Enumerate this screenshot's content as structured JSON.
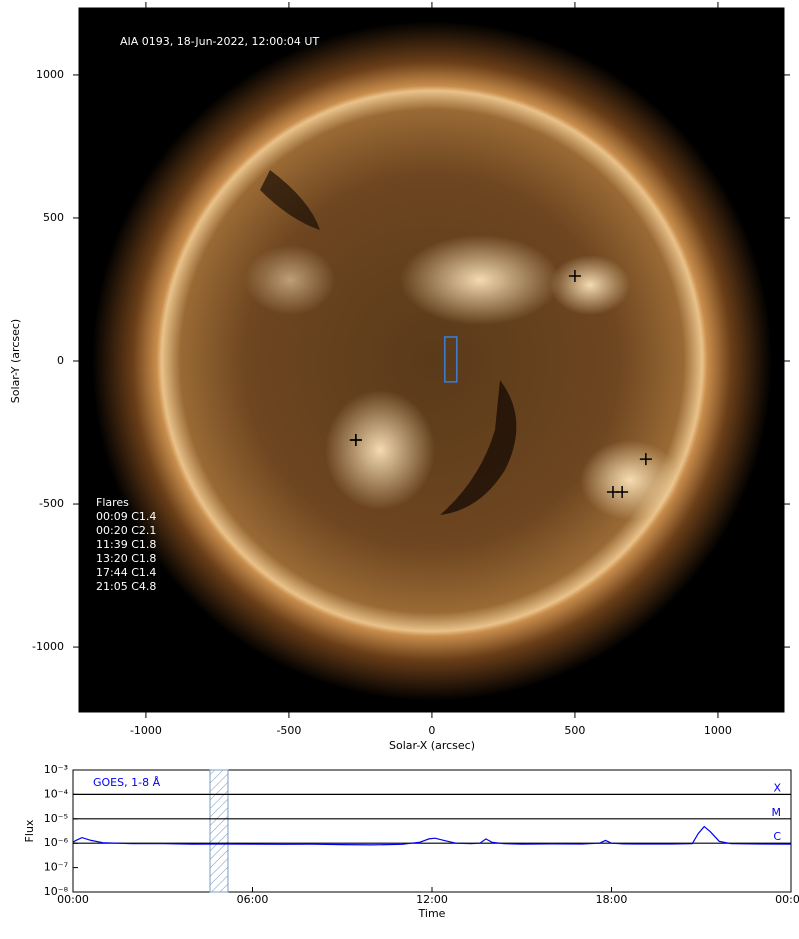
{
  "chart_data": [
    {
      "type": "scatter",
      "title": "AIA 0193, 18-Jun-2022, 12:00:04 UT",
      "x_label": "Solar-X (arcsec)",
      "y_label": "Solar-Y (arcsec)",
      "xlim": [
        -1234,
        1231
      ],
      "ylim": [
        -1227,
        1234
      ],
      "xticks": [
        -1000,
        -500,
        0,
        500,
        1000
      ],
      "yticks": [
        -1000,
        -500,
        0,
        500,
        1000
      ],
      "x": [
        500,
        -266,
        -266,
        748,
        633,
        665
      ],
      "y": [
        297,
        -276,
        -276,
        -343,
        -458,
        -458
      ],
      "color": "#000000",
      "fov_box": {
        "x": [
          45,
          87
        ],
        "y": [
          -73,
          84
        ],
        "color": "#3a7fd5"
      },
      "annotation": [
        "Flares",
        "00:09 C1.4",
        "00:20 C2.1",
        "11:39 C1.8",
        "13:20 C1.8",
        "17:44 C1.4",
        "21:05 C4.8"
      ]
    },
    {
      "type": "line",
      "log_y": true,
      "x_label": "Time",
      "y_label": "Flux",
      "xlim": [
        0,
        24
      ],
      "ylim": [
        1e-08,
        0.001
      ],
      "xticks": [
        {
          "value": 0,
          "label": "00:00"
        },
        {
          "value": 6,
          "label": "06:00"
        },
        {
          "value": 12,
          "label": "12:00"
        },
        {
          "value": 18,
          "label": "18:00"
        },
        {
          "value": 24,
          "label": "00:00"
        }
      ],
      "yticks": [
        {
          "value": 1e-08,
          "label": "10⁻⁸"
        },
        {
          "value": 1e-07,
          "label": "10⁻⁷"
        },
        {
          "value": 1e-06,
          "label": "10⁻⁶"
        },
        {
          "value": 1e-05,
          "label": "10⁻⁵"
        },
        {
          "value": 0.0001,
          "label": "10⁻⁴"
        },
        {
          "value": 0.001,
          "label": "10⁻³"
        }
      ],
      "levels": [
        {
          "value": 0.0001,
          "label": "X"
        },
        {
          "value": 1e-05,
          "label": "M"
        },
        {
          "value": 1e-06,
          "label": "C"
        }
      ],
      "span": [
        4.58,
        5.18
      ],
      "x": [
        0,
        0.1,
        0.3,
        0.6,
        1,
        1.5,
        2,
        3,
        4,
        5,
        6,
        7,
        8,
        9,
        10,
        11,
        11.6,
        11.9,
        12.1,
        12.4,
        12.8,
        13.3,
        13.6,
        13.8,
        14.0,
        14.4,
        15,
        16,
        17,
        17.6,
        17.8,
        18.0,
        18.4,
        19,
        20,
        20.7,
        20.9,
        21.1,
        21.3,
        21.6,
        22,
        23,
        24
      ],
      "series": [
        {
          "name": "GOES, 1-8 Å",
          "color": "#0000ee",
          "values": [
            1.1e-06,
            1.3e-06,
            1.7e-06,
            1.3e-06,
            1.05e-06,
            1e-06,
            9.5e-07,
            9.6e-07,
            9.2e-07,
            9.3e-07,
            9.2e-07,
            9e-07,
            9.1e-07,
            8.8e-07,
            8.5e-07,
            9e-07,
            1.1e-06,
            1.5e-06,
            1.6e-06,
            1.3e-06,
            1e-06,
            9.5e-07,
            1e-06,
            1.5e-06,
            1.1e-06,
            9.5e-07,
            9.2e-07,
            9.4e-07,
            9.3e-07,
            1e-06,
            1.3e-06,
            1e-06,
            9.4e-07,
            9.3e-07,
            9.3e-07,
            9.5e-07,
            2.5e-06,
            4.8e-06,
            3e-06,
            1.2e-06,
            9.5e-07,
            9.3e-07,
            9.2e-07
          ]
        }
      ]
    }
  ]
}
